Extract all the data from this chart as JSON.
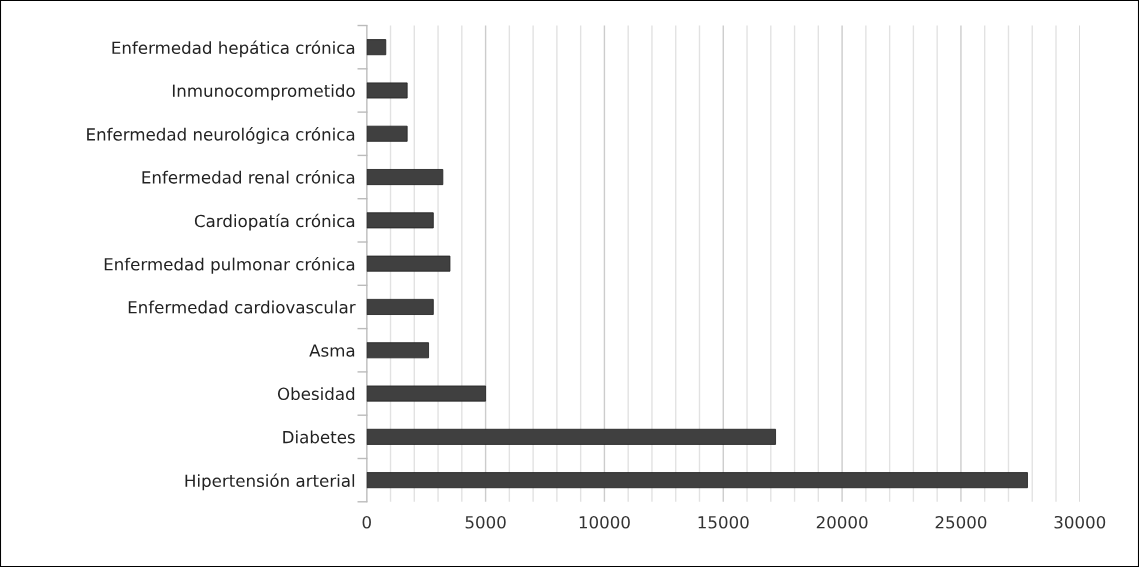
{
  "chart_data": {
    "type": "bar",
    "orientation": "horizontal",
    "categories": [
      "Enfermedad hepática crónica",
      "Inmunocomprometido",
      "Enfermedad neurológica crónica",
      "Enfermedad renal crónica",
      "Cardiopatía crónica",
      "Enfermedad pulmonar crónica",
      "Enfermedad cardiovascular",
      "Asma",
      "Obesidad",
      "Diabetes",
      "Hipertensión arterial"
    ],
    "values": [
      800,
      1700,
      1700,
      3200,
      2800,
      3500,
      2800,
      2600,
      5000,
      17200,
      27800
    ],
    "color": "#404040",
    "xlim": [
      0,
      30000
    ],
    "xticks": [
      0,
      {
        "value": 1000,
        "label": null
      },
      {
        "value": 2000,
        "label": null
      },
      {
        "value": 3000,
        "label": null
      },
      {
        "value": 4000,
        "label": null
      },
      5000,
      {
        "value": 6000,
        "label": null
      },
      {
        "value": 7000,
        "label": null
      },
      {
        "value": 8000,
        "label": null
      },
      {
        "value": 9000,
        "label": null
      },
      10000,
      {
        "value": 11000,
        "label": null
      },
      {
        "value": 12000,
        "label": null
      },
      {
        "value": 13000,
        "label": null
      },
      {
        "value": 14000,
        "label": null
      },
      15000,
      {
        "value": 16000,
        "label": null
      },
      {
        "value": 17000,
        "label": null
      },
      {
        "value": 18000,
        "label": null
      },
      {
        "value": 19000,
        "label": null
      },
      20000,
      {
        "value": 21000,
        "label": null
      },
      {
        "value": 22000,
        "label": null
      },
      {
        "value": 23000,
        "label": null
      },
      {
        "value": 24000,
        "label": null
      },
      25000,
      {
        "value": 26000,
        "label": null
      },
      {
        "value": 27000,
        "label": null
      },
      {
        "value": 28000,
        "label": null
      },
      {
        "value": 29000,
        "label": null
      },
      30000
    ],
    "grid": "x"
  }
}
